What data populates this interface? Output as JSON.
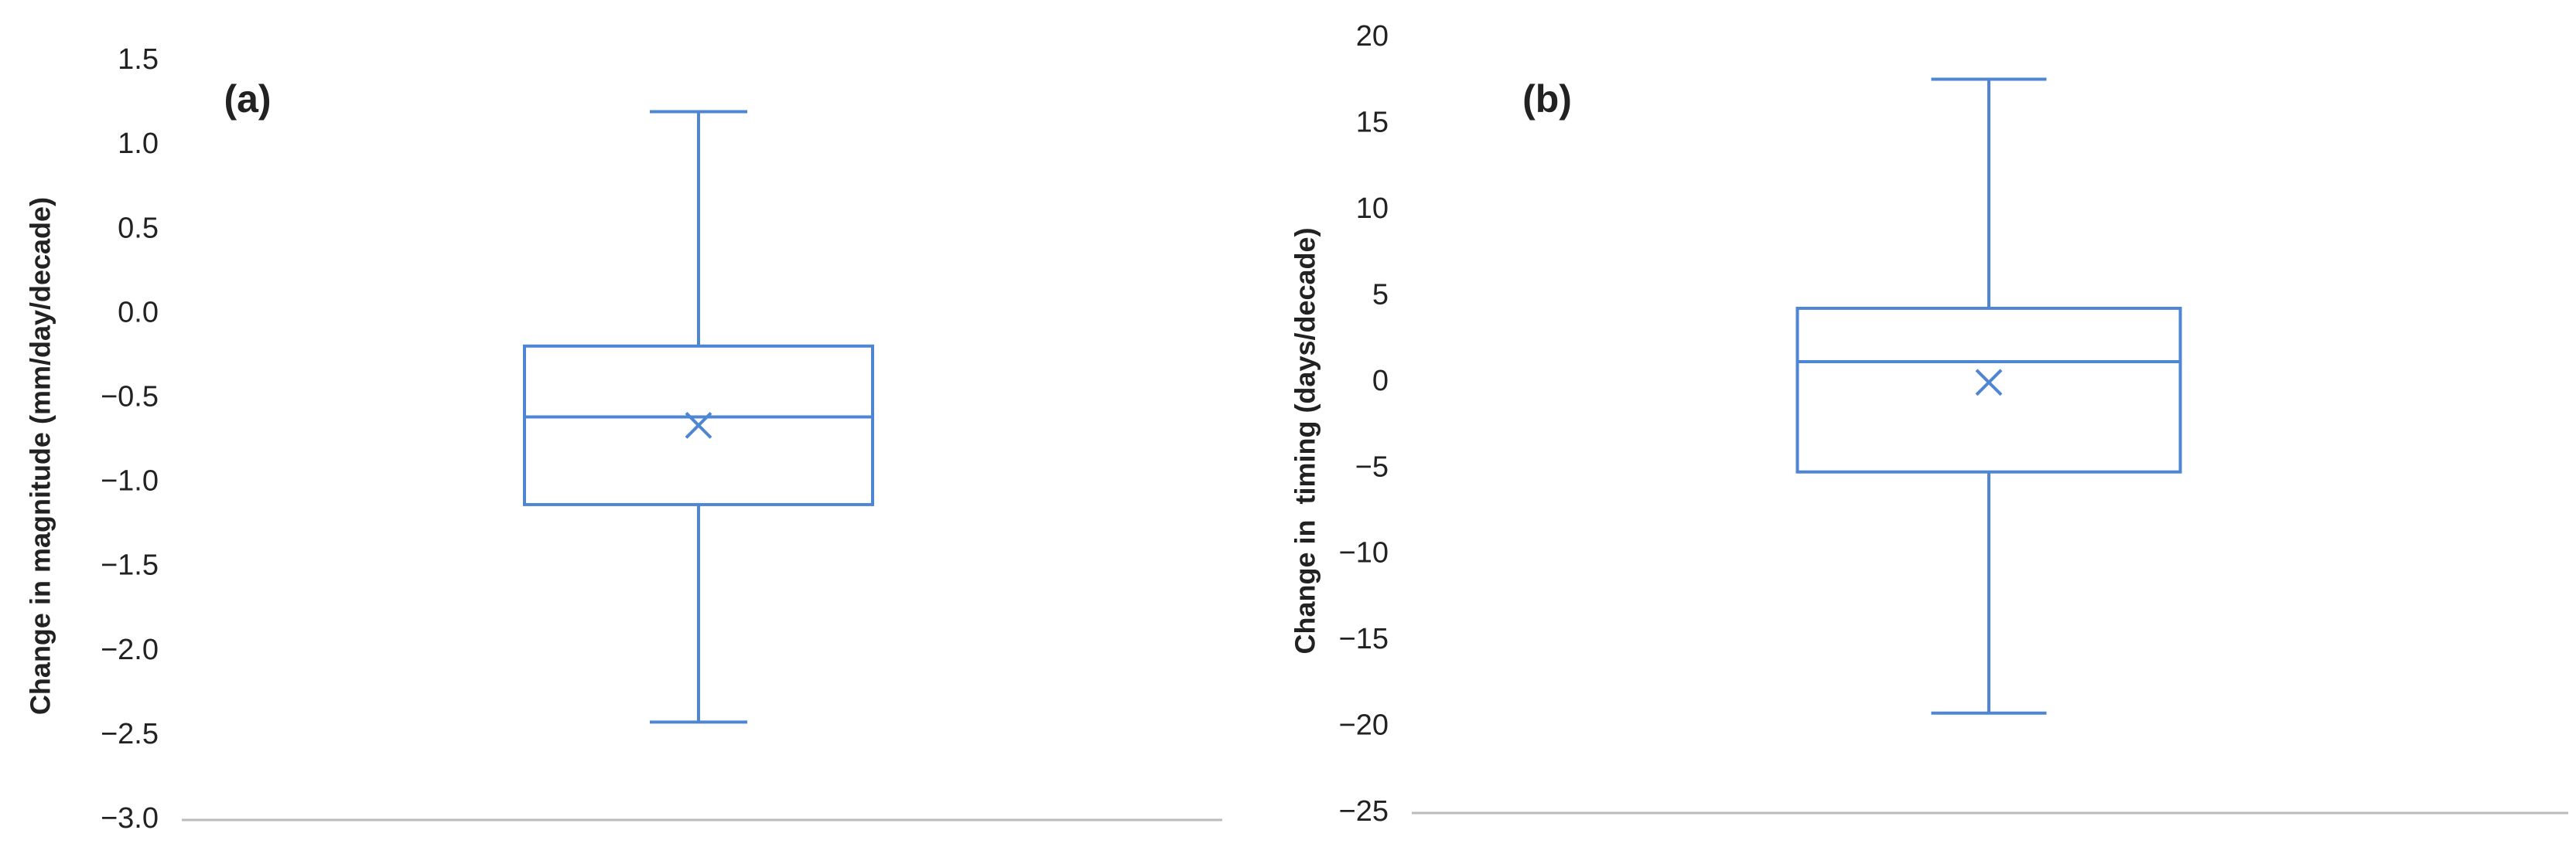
{
  "chart_data": [
    {
      "type": "box",
      "annotation": "(a)",
      "ylabel": "Change in magnitude (mm/day/decade)",
      "ylim": [
        -3.0,
        1.5
      ],
      "yticks": [
        1.5,
        {
          "value": 1.0,
          "label": "1.0"
        },
        0.5,
        {
          "value": 0.0,
          "label": "0.0"
        },
        {
          "value": -0.5,
          "label": "−0.5"
        },
        {
          "value": -1.0,
          "label": "−1.0"
        },
        {
          "value": -1.5,
          "label": "−1.5"
        },
        {
          "value": -2.0,
          "label": "−2.0"
        },
        {
          "value": -2.5,
          "label": "−2.5"
        },
        {
          "value": -3.0,
          "label": "−3.0"
        }
      ],
      "color": "#4f86d4",
      "box": {
        "min": -2.42,
        "q1": -1.13,
        "median": -0.61,
        "q3": -0.19,
        "max": 1.2,
        "mean": -0.66
      }
    },
    {
      "type": "box",
      "annotation": "(b)",
      "ylabel": "Change in  timing (days/decade)",
      "ylim": [
        -25,
        20
      ],
      "yticks": [
        20,
        15,
        10,
        5,
        0,
        {
          "value": -5,
          "label": "−5"
        },
        {
          "value": -10,
          "label": "−10"
        },
        {
          "value": -15,
          "label": "−15"
        },
        {
          "value": -20,
          "label": "−20"
        },
        {
          "value": -25,
          "label": "−25"
        }
      ],
      "color": "#4f86d4",
      "box": {
        "min": -19.2,
        "q1": -5.2,
        "median": 1.2,
        "q3": 4.3,
        "max": 17.6,
        "mean": 0.0
      }
    }
  ]
}
